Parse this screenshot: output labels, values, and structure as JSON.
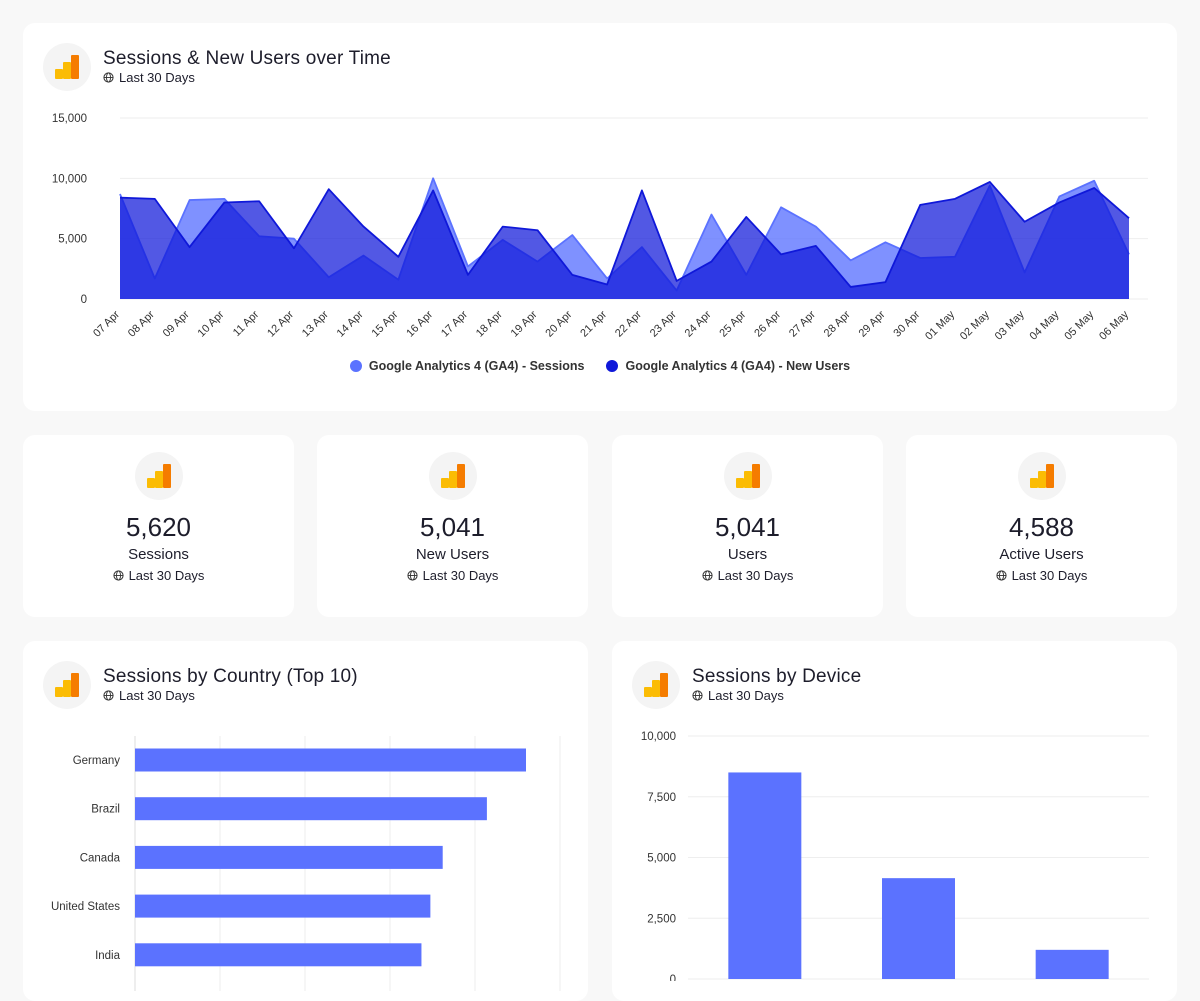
{
  "colors": {
    "sessions": "#5b72ff",
    "new_users": "#0f18d9",
    "bar": "#5b72ff",
    "ga_yellow": "#fbbc04",
    "ga_orange": "#f57c00"
  },
  "header_card": {
    "title": "Sessions & New Users over Time",
    "subtitle": "Last 30 Days",
    "icon": "google-analytics-icon"
  },
  "kpis": [
    {
      "value": "5,620",
      "label": "Sessions",
      "subtitle": "Last 30 Days"
    },
    {
      "value": "5,041",
      "label": "New Users",
      "subtitle": "Last 30 Days"
    },
    {
      "value": "5,041",
      "label": "Users",
      "subtitle": "Last 30 Days"
    },
    {
      "value": "4,588",
      "label": "Active Users",
      "subtitle": "Last 30 Days"
    }
  ],
  "country_card": {
    "title": "Sessions by Country (Top 10)",
    "subtitle": "Last 30 Days"
  },
  "device_card": {
    "title": "Sessions by Device",
    "subtitle": "Last 30 Days"
  },
  "chart_data": [
    {
      "type": "area",
      "x": [
        "07 Apr",
        "08 Apr",
        "09 Apr",
        "10 Apr",
        "11 Apr",
        "12 Apr",
        "13 Apr",
        "14 Apr",
        "15 Apr",
        "16 Apr",
        "17 Apr",
        "18 Apr",
        "19 Apr",
        "20 Apr",
        "21 Apr",
        "22 Apr",
        "23 Apr",
        "24 Apr",
        "25 Apr",
        "26 Apr",
        "27 Apr",
        "28 Apr",
        "29 Apr",
        "30 Apr",
        "01 May",
        "02 May",
        "03 May",
        "04 May",
        "05 May",
        "06 May"
      ],
      "y_ticks": [
        "0",
        "5,000",
        "10,000",
        "15,000"
      ],
      "ylim": [
        0,
        15000
      ],
      "series": [
        {
          "name": "Google Analytics 4 (GA4) - Sessions",
          "values": [
            8700,
            1700,
            8200,
            8300,
            5200,
            5000,
            1800,
            3600,
            1600,
            10000,
            2700,
            4900,
            3100,
            5300,
            1700,
            4300,
            700,
            7000,
            2000,
            7600,
            6000,
            3200,
            4700,
            3400,
            3500,
            9400,
            2200,
            8500,
            9800,
            3700
          ]
        },
        {
          "name": "Google Analytics 4 (GA4) - New Users",
          "values": [
            8400,
            8300,
            4300,
            8000,
            8100,
            4200,
            9100,
            6000,
            3500,
            9000,
            2000,
            6000,
            5700,
            2000,
            1200,
            9000,
            1500,
            3100,
            6800,
            3700,
            4400,
            1000,
            1400,
            7800,
            8300,
            9700,
            6400,
            8000,
            9200,
            6700
          ]
        }
      ],
      "legend": "bottom-center",
      "grid": true
    },
    {
      "type": "bar",
      "orientation": "horizontal",
      "categories": [
        "Germany",
        "Brazil",
        "Canada",
        "United States",
        "India"
      ],
      "values": [
        9200,
        8280,
        7240,
        6950,
        6740
      ],
      "xlim": [
        0,
        10000
      ],
      "grid": true
    },
    {
      "type": "bar",
      "categories": [
        "",
        "",
        ""
      ],
      "values": [
        8500,
        4150,
        1200
      ],
      "y_ticks": [
        "0",
        "2,500",
        "5,000",
        "7,500",
        "10,000"
      ],
      "ylim": [
        0,
        10000
      ],
      "grid": true
    }
  ]
}
